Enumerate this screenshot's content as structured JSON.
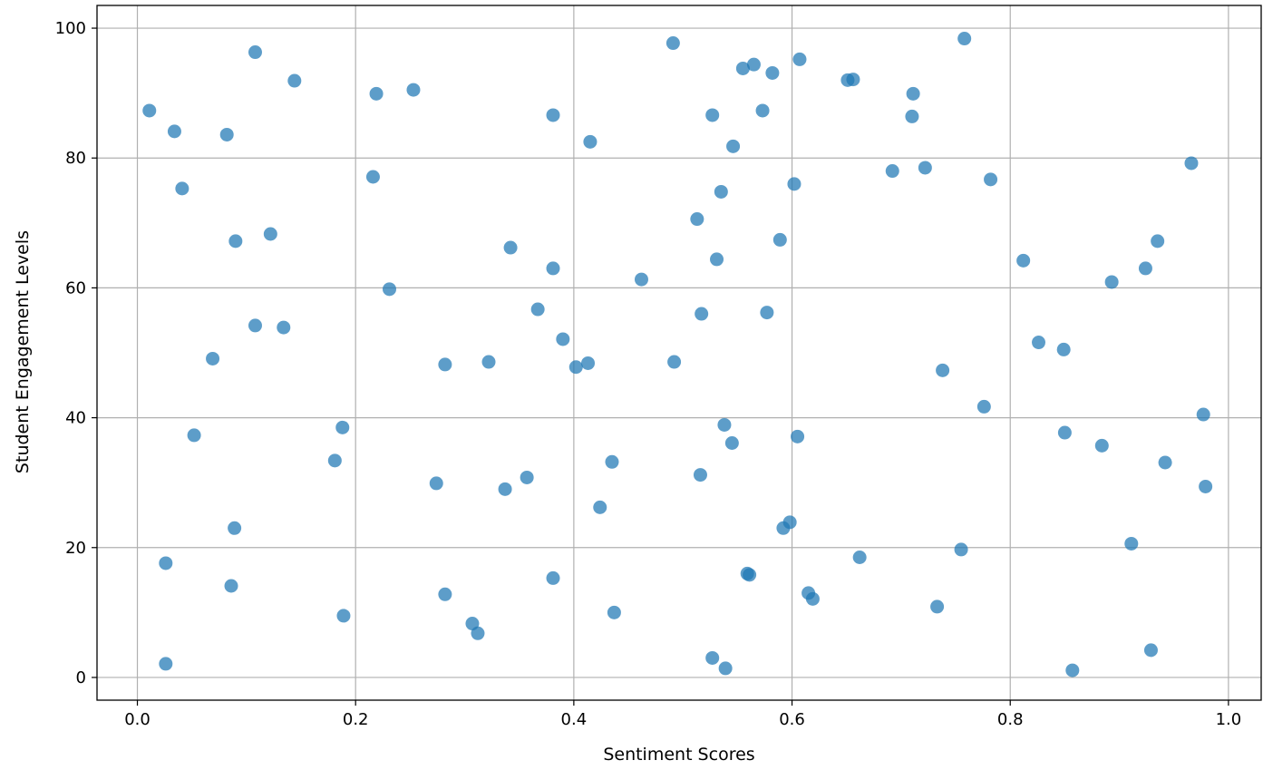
{
  "chart_data": {
    "type": "scatter",
    "title": "",
    "xlabel": "Sentiment Scores",
    "ylabel": "Student Engagement Levels",
    "xlim": [
      -0.037,
      1.03
    ],
    "ylim": [
      -3.5,
      103.5
    ],
    "x_ticks": [
      "0.0",
      "0.2",
      "0.4",
      "0.6",
      "0.8",
      "1.0"
    ],
    "y_ticks": [
      "0",
      "20",
      "40",
      "60",
      "80",
      "100"
    ],
    "grid": true,
    "legend": "none",
    "colors": {
      "point": "#1f77b4",
      "grid": "#b0b0b0",
      "axes": "#000000"
    },
    "series": [
      {
        "points": [
          [
            0.011,
            87.3
          ],
          [
            0.034,
            84.1
          ],
          [
            0.041,
            75.3
          ],
          [
            0.026,
            17.6
          ],
          [
            0.026,
            2.1
          ],
          [
            0.052,
            37.3
          ],
          [
            0.069,
            49.1
          ],
          [
            0.082,
            83.6
          ],
          [
            0.09,
            67.2
          ],
          [
            0.086,
            14.1
          ],
          [
            0.089,
            23.0
          ],
          [
            0.108,
            96.3
          ],
          [
            0.108,
            54.2
          ],
          [
            0.122,
            68.3
          ],
          [
            0.134,
            53.9
          ],
          [
            0.144,
            91.9
          ],
          [
            0.181,
            33.4
          ],
          [
            0.188,
            38.5
          ],
          [
            0.189,
            9.5
          ],
          [
            0.216,
            77.1
          ],
          [
            0.219,
            89.9
          ],
          [
            0.231,
            59.8
          ],
          [
            0.253,
            90.5
          ],
          [
            0.274,
            29.9
          ],
          [
            0.282,
            48.2
          ],
          [
            0.282,
            12.8
          ],
          [
            0.307,
            8.3
          ],
          [
            0.312,
            6.8
          ],
          [
            0.322,
            48.6
          ],
          [
            0.337,
            29.0
          ],
          [
            0.342,
            66.2
          ],
          [
            0.357,
            30.8
          ],
          [
            0.367,
            56.7
          ],
          [
            0.381,
            86.6
          ],
          [
            0.381,
            63.0
          ],
          [
            0.381,
            15.3
          ],
          [
            0.39,
            52.1
          ],
          [
            0.402,
            47.8
          ],
          [
            0.413,
            48.4
          ],
          [
            0.415,
            82.5
          ],
          [
            0.424,
            26.2
          ],
          [
            0.435,
            33.2
          ],
          [
            0.437,
            10.0
          ],
          [
            0.462,
            61.3
          ],
          [
            0.491,
            97.7
          ],
          [
            0.492,
            48.6
          ],
          [
            0.513,
            70.6
          ],
          [
            0.516,
            31.2
          ],
          [
            0.517,
            56.0
          ],
          [
            0.527,
            86.6
          ],
          [
            0.527,
            3.0
          ],
          [
            0.531,
            64.4
          ],
          [
            0.535,
            74.8
          ],
          [
            0.538,
            38.9
          ],
          [
            0.539,
            1.4
          ],
          [
            0.545,
            36.1
          ],
          [
            0.546,
            81.8
          ],
          [
            0.555,
            93.8
          ],
          [
            0.559,
            16.0
          ],
          [
            0.561,
            15.8
          ],
          [
            0.565,
            94.4
          ],
          [
            0.573,
            87.3
          ],
          [
            0.577,
            56.2
          ],
          [
            0.582,
            93.1
          ],
          [
            0.589,
            67.4
          ],
          [
            0.592,
            23.0
          ],
          [
            0.598,
            23.9
          ],
          [
            0.602,
            76.0
          ],
          [
            0.605,
            37.1
          ],
          [
            0.607,
            95.2
          ],
          [
            0.615,
            13.0
          ],
          [
            0.619,
            12.1
          ],
          [
            0.651,
            92.0
          ],
          [
            0.656,
            92.1
          ],
          [
            0.662,
            18.5
          ],
          [
            0.692,
            78.0
          ],
          [
            0.71,
            86.4
          ],
          [
            0.711,
            89.9
          ],
          [
            0.722,
            78.5
          ],
          [
            0.733,
            10.9
          ],
          [
            0.738,
            47.3
          ],
          [
            0.755,
            19.7
          ],
          [
            0.758,
            98.4
          ],
          [
            0.776,
            41.7
          ],
          [
            0.782,
            76.7
          ],
          [
            0.812,
            64.2
          ],
          [
            0.826,
            51.6
          ],
          [
            0.849,
            50.5
          ],
          [
            0.85,
            37.7
          ],
          [
            0.857,
            1.1
          ],
          [
            0.884,
            35.7
          ],
          [
            0.893,
            60.9
          ],
          [
            0.911,
            20.6
          ],
          [
            0.924,
            63.0
          ],
          [
            0.929,
            4.2
          ],
          [
            0.935,
            67.2
          ],
          [
            0.942,
            33.1
          ],
          [
            0.966,
            79.2
          ],
          [
            0.977,
            40.5
          ],
          [
            0.979,
            29.4
          ]
        ]
      }
    ]
  }
}
